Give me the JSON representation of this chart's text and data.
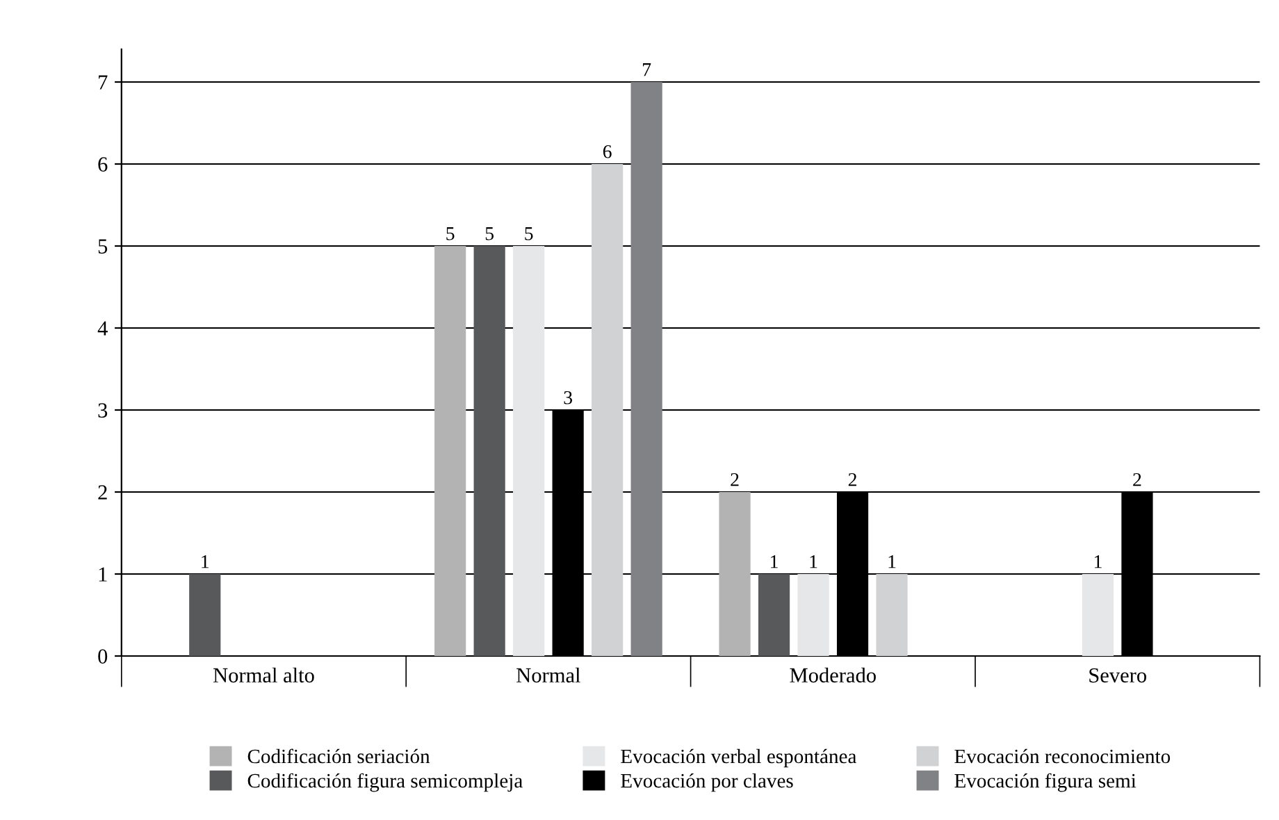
{
  "chart_data": {
    "type": "bar",
    "categories": [
      "Normal alto",
      "Normal",
      "Moderado",
      "Severo"
    ],
    "series": [
      {
        "name": "Codificación seriación",
        "color": "#b3b3b3",
        "values": [
          null,
          5,
          2,
          null
        ]
      },
      {
        "name": "Codificación figura semicompleja",
        "color": "#58595b",
        "values": [
          1,
          5,
          1,
          null
        ]
      },
      {
        "name": "Evocación verbal espontánea",
        "color": "#e6e7e8",
        "values": [
          null,
          5,
          1,
          1
        ]
      },
      {
        "name": "Evocación por claves",
        "color": "#000000",
        "values": [
          null,
          3,
          2,
          2
        ]
      },
      {
        "name": "Evocación reconocimiento",
        "color": "#d1d2d4",
        "values": [
          null,
          6,
          1,
          null
        ]
      },
      {
        "name": "Evocación figura semi",
        "color": "#808285",
        "values": [
          null,
          7,
          null,
          null
        ]
      }
    ],
    "ylim": [
      0,
      7.4
    ],
    "yticks": [
      0,
      1,
      2,
      3,
      4,
      5,
      6,
      7
    ],
    "grid": "y",
    "legend": "bottom",
    "data_labels": true
  }
}
